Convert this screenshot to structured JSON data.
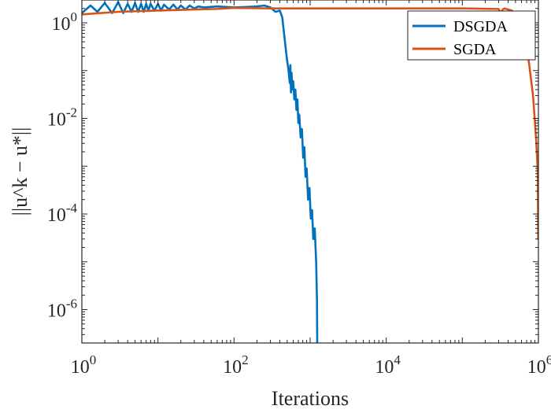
{
  "chart_data": {
    "type": "line",
    "xlabel": "Iterations",
    "ylabel": "||u^k − u*||",
    "x_scale": "log",
    "y_scale": "log",
    "xlim": [
      1,
      1000000
    ],
    "ylim": [
      2e-07,
      3
    ],
    "x_ticks": [
      {
        "value": 1,
        "base": "10",
        "exp": "0"
      },
      {
        "value": 100,
        "base": "10",
        "exp": "2"
      },
      {
        "value": 10000,
        "base": "10",
        "exp": "4"
      },
      {
        "value": 1000000,
        "base": "10",
        "exp": "6"
      }
    ],
    "y_ticks": [
      {
        "value": 1,
        "base": "10",
        "exp": "0"
      },
      {
        "value": 0.01,
        "base": "10",
        "exp": "-2"
      },
      {
        "value": 0.0001,
        "base": "10",
        "exp": "-4"
      },
      {
        "value": 1e-06,
        "base": "10",
        "exp": "-6"
      }
    ],
    "grid": false,
    "legend_position": "top-right",
    "series": [
      {
        "name": "DSGDA",
        "color": "#0072BD",
        "points": [
          [
            1,
            1.6
          ],
          [
            1.3,
            2.3
          ],
          [
            1.6,
            1.7
          ],
          [
            2,
            2.6
          ],
          [
            2.5,
            1.6
          ],
          [
            3,
            2.7
          ],
          [
            3.5,
            1.6
          ],
          [
            4,
            2.5
          ],
          [
            4.5,
            1.7
          ],
          [
            5,
            2.6
          ],
          [
            5.5,
            1.7
          ],
          [
            6,
            2.5
          ],
          [
            6.5,
            1.7
          ],
          [
            7,
            2.5
          ],
          [
            7.5,
            1.8
          ],
          [
            8,
            2.5
          ],
          [
            9,
            1.8
          ],
          [
            10,
            2.5
          ],
          [
            11,
            1.8
          ],
          [
            12,
            2.4
          ],
          [
            14,
            1.9
          ],
          [
            16,
            2.4
          ],
          [
            18,
            1.9
          ],
          [
            20,
            2.3
          ],
          [
            23,
            1.9
          ],
          [
            26,
            2.3
          ],
          [
            30,
            2.0
          ],
          [
            34,
            2.2
          ],
          [
            40,
            2.1
          ],
          [
            60,
            2.2
          ],
          [
            100,
            2.1
          ],
          [
            150,
            2.15
          ],
          [
            200,
            2.2
          ],
          [
            250,
            2.3
          ],
          [
            300,
            2.1
          ],
          [
            350,
            1.7
          ],
          [
            400,
            1.8
          ],
          [
            430,
            1.3
          ],
          [
            460,
            0.5
          ],
          [
            490,
            0.2
          ],
          [
            520,
            0.1
          ],
          [
            540,
            0.055
          ],
          [
            550,
            0.13
          ],
          [
            560,
            0.035
          ],
          [
            570,
            0.09
          ],
          [
            585,
            0.04
          ],
          [
            600,
            0.06
          ],
          [
            620,
            0.025
          ],
          [
            640,
            0.04
          ],
          [
            660,
            0.015
          ],
          [
            680,
            0.025
          ],
          [
            700,
            0.008
          ],
          [
            720,
            0.012
          ],
          [
            750,
            0.004
          ],
          [
            780,
            0.006
          ],
          [
            810,
            0.0015
          ],
          [
            840,
            0.0025
          ],
          [
            870,
            0.0006
          ],
          [
            900,
            0.0009
          ],
          [
            940,
            0.0002
          ],
          [
            980,
            0.00035
          ],
          [
            1020,
            8e-05
          ],
          [
            1060,
            0.00012
          ],
          [
            1100,
            3e-05
          ],
          [
            1150,
            5e-05
          ],
          [
            1200,
            1e-05
          ],
          [
            1230,
            1.5e-06
          ],
          [
            1240,
            2e-07
          ]
        ]
      },
      {
        "name": "SGDA",
        "color": "#D95319",
        "points": [
          [
            1,
            1.5
          ],
          [
            3,
            1.7
          ],
          [
            10,
            1.8
          ],
          [
            30,
            1.9
          ],
          [
            60,
            1.95
          ],
          [
            100,
            2.05
          ],
          [
            300,
            2.0
          ],
          [
            1000,
            2.0
          ],
          [
            10000,
            2.0
          ],
          [
            100000,
            2.0
          ],
          [
            300000,
            1.95
          ],
          [
            320000,
            1.6
          ],
          [
            340000,
            1.9
          ],
          [
            360000,
            2.0
          ],
          [
            450000,
            1.8
          ],
          [
            550000,
            1.1
          ],
          [
            650000,
            0.5
          ],
          [
            750000,
            0.15
          ],
          [
            850000,
            0.03
          ],
          [
            930000,
            0.004
          ],
          [
            980000,
            0.0008
          ],
          [
            995000,
            3e-05
          ],
          [
            1000000,
            0.00015
          ]
        ]
      }
    ]
  }
}
